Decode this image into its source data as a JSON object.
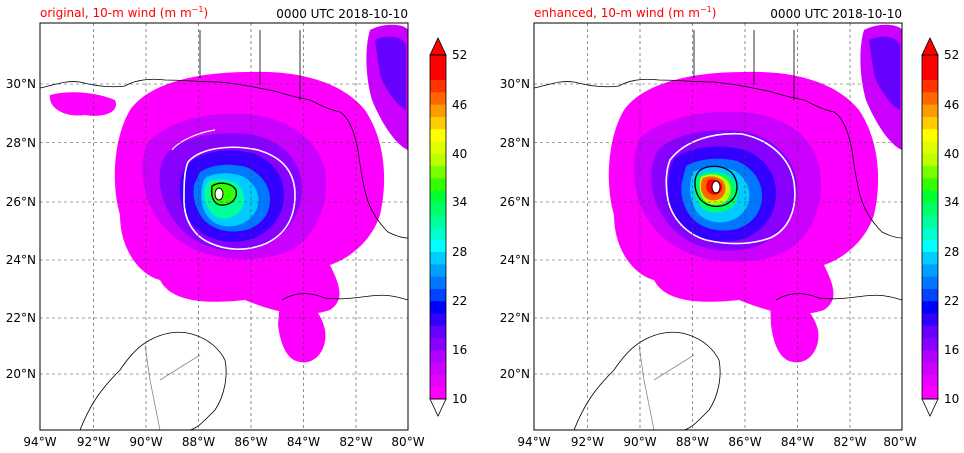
{
  "panels": [
    {
      "id": "original",
      "title": "original, 10-m wind (m m",
      "title_sup": "−1",
      "title_close": ")",
      "title_color": "#ff0000",
      "time_label": "0000 UTC 2018-10-10"
    },
    {
      "id": "enhanced",
      "title": "enhanced, 10-m wind (m m",
      "title_sup": "−1",
      "title_close": ")",
      "title_color": "#ff0000",
      "time_label": "0000 UTC 2018-10-10"
    }
  ],
  "map": {
    "lon_range": [
      -94,
      -80
    ],
    "lat_range": [
      18,
      32
    ],
    "lon_ticks": [
      "94°W",
      "92°W",
      "90°W",
      "88°W",
      "86°W",
      "84°W",
      "82°W",
      "80°W"
    ],
    "lat_ticks": [
      "20°N",
      "22°N",
      "24°N",
      "26°N",
      "28°N",
      "30°N"
    ],
    "grid": "dashed"
  },
  "colorbar": {
    "ticks": [
      "10",
      "16",
      "22",
      "28",
      "34",
      "40",
      "46",
      "52"
    ],
    "min": 10,
    "max": 52,
    "colors": [
      "#ff00ff",
      "#e600ff",
      "#cc00ff",
      "#b000ff",
      "#8800ff",
      "#6600ff",
      "#3300ff",
      "#0000ff",
      "#0044ff",
      "#0077ff",
      "#00a0ff",
      "#00ccff",
      "#00ffff",
      "#00ffcc",
      "#00ff99",
      "#00ff66",
      "#00ff33",
      "#33ff00",
      "#77ff00",
      "#bbff00",
      "#ddff00",
      "#ffff00",
      "#ffcc00",
      "#ff9900",
      "#ff6600",
      "#ff3300",
      "#ff0000",
      "#ff0000"
    ],
    "extend": "both"
  }
}
